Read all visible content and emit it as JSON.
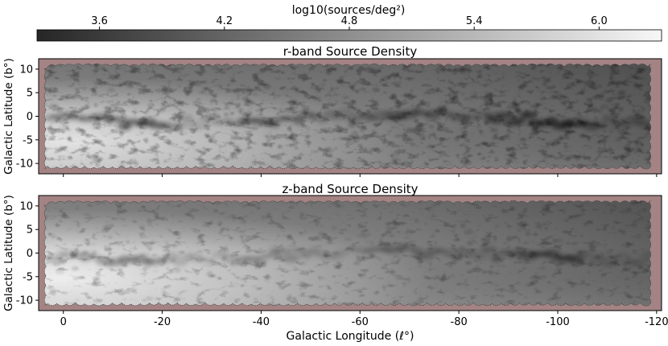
{
  "figure": {
    "colorbar": {
      "label": "log10(sources/deg²)",
      "ticks": [
        3.6,
        4.2,
        4.8,
        5.4,
        6.0
      ],
      "tick_labels": [
        "3.6",
        "4.2",
        "4.8",
        "5.4",
        "6.0"
      ],
      "range": [
        3.3,
        6.3
      ],
      "colormap": "gray",
      "color_low": "#262626",
      "color_high": "#f7f7f7"
    },
    "background_color": "#a38383"
  },
  "chart_data": [
    {
      "type": "heatmap",
      "title": "r-band Source Density",
      "xlabel": "",
      "ylabel": "Galactic Latitude (b°)",
      "x_range": [
        5,
        -121
      ],
      "y_range": [
        -12.2,
        12.2
      ],
      "x_ticks": [
        0,
        -20,
        -40,
        -60,
        -80,
        -100,
        -120
      ],
      "x_tick_labels": [],
      "y_ticks": [
        10,
        5,
        0,
        -5,
        -10
      ],
      "y_tick_labels": [
        "10",
        "5",
        "0",
        "-5",
        "-10"
      ],
      "coverage_b": [
        -11,
        11
      ],
      "notable_features": [
        "dust lane along b≈0 darkest near l=-90 to -100",
        "brightest region near the bulge at l≈0, b<0"
      ]
    },
    {
      "type": "heatmap",
      "title": "z-band Source Density",
      "xlabel": "Galactic Longitude (ℓ°)",
      "ylabel": "Galactic Latitude (b°)",
      "x_range": [
        5,
        -121
      ],
      "y_range": [
        -12.2,
        12.2
      ],
      "x_ticks": [
        0,
        -20,
        -40,
        -60,
        -80,
        -100,
        -120
      ],
      "x_tick_labels": [
        "0",
        "-20",
        "-40",
        "-60",
        "-80",
        "-100",
        "-120"
      ],
      "y_ticks": [
        10,
        5,
        0,
        -5,
        -10
      ],
      "y_tick_labels": [
        "10",
        "5",
        "0",
        "-5",
        "-10"
      ],
      "coverage_b": [
        -11,
        11
      ],
      "notable_features": [
        "dust lane along b≈0 weaker than r-band",
        "brightest region near the bulge at l≈0, b<0"
      ]
    }
  ]
}
